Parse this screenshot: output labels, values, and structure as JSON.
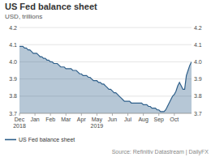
{
  "chart_data": {
    "type": "area",
    "title": "US Fed balance sheet",
    "subtitle": "USD, trillions",
    "source": "Source: Refinitiv Datastream | DailyFX",
    "categories": [
      "Dec\n2018",
      null,
      null,
      null,
      null,
      null,
      null,
      null,
      null,
      "Jan",
      null,
      null,
      null,
      null,
      null,
      null,
      null,
      null,
      "Feb",
      null,
      null,
      null,
      null,
      null,
      null,
      null,
      null,
      "Mar",
      null,
      null,
      null,
      null,
      null,
      null,
      null,
      null,
      "Apr",
      null,
      null,
      null,
      null,
      null,
      null,
      null,
      null,
      "May\n2019",
      null,
      null,
      null,
      null,
      null,
      null,
      null,
      null,
      "Jun",
      null,
      null,
      null,
      null,
      null,
      null,
      null,
      null,
      "Jul",
      null,
      null,
      null,
      null,
      null,
      null,
      null,
      null,
      "Aug",
      null,
      null,
      null,
      null,
      null,
      null,
      null,
      null,
      "Sep",
      null,
      null,
      null,
      null,
      null,
      null,
      null,
      null,
      "Oct",
      null,
      null,
      null,
      null,
      null,
      null,
      null,
      null,
      null,
      null
    ],
    "series": [
      {
        "name": "US Fed balance sheet",
        "color": "#2e5f8a",
        "values": [
          4.09,
          4.09,
          4.09,
          4.08,
          4.08,
          4.07,
          4.07,
          4.06,
          4.05,
          4.05,
          4.05,
          4.04,
          4.03,
          4.03,
          4.02,
          4.02,
          4.01,
          4.01,
          4.0,
          4.0,
          3.99,
          3.99,
          3.99,
          3.98,
          3.97,
          3.97,
          3.97,
          3.96,
          3.96,
          3.96,
          3.96,
          3.95,
          3.95,
          3.95,
          3.94,
          3.93,
          3.93,
          3.92,
          3.92,
          3.92,
          3.91,
          3.91,
          3.9,
          3.89,
          3.89,
          3.89,
          3.88,
          3.88,
          3.87,
          3.87,
          3.86,
          3.85,
          3.84,
          3.84,
          3.83,
          3.82,
          3.82,
          3.81,
          3.8,
          3.79,
          3.78,
          3.77,
          3.77,
          3.77,
          3.77,
          3.76,
          3.76,
          3.76,
          3.76,
          3.76,
          3.76,
          3.76,
          3.75,
          3.75,
          3.75,
          3.74,
          3.74,
          3.73,
          3.73,
          3.73,
          3.72,
          3.72,
          3.71,
          3.71,
          3.71,
          3.72,
          3.74,
          3.76,
          3.78,
          3.8,
          3.81,
          3.83,
          3.86,
          3.88,
          3.86,
          3.84,
          3.84,
          3.92,
          3.95,
          3.98,
          4.0
        ]
      }
    ],
    "ylim": [
      3.7,
      4.2
    ],
    "yticks": [
      3.7,
      3.8,
      3.9,
      {
        "value": 4.0,
        "label": "4.0"
      },
      4.1,
      4.2
    ],
    "grid": true,
    "legend": "lower left"
  }
}
